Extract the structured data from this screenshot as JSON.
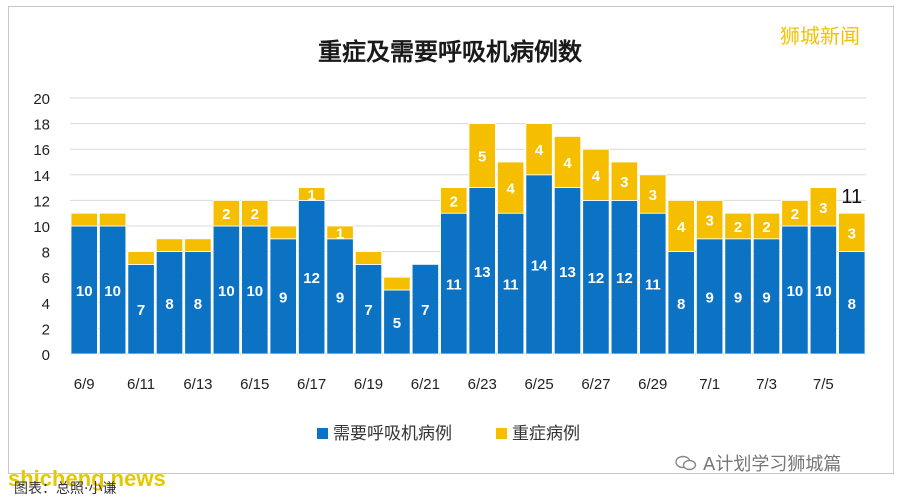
{
  "brand": "狮城新闻",
  "watermark": "shicheng.news",
  "wechat_account": "A计划学习狮城篇",
  "caption": "图表：总照·小谦",
  "colors": {
    "series1": "#0c72c4",
    "series2": "#f5bf00",
    "grid": "#d9d9d9",
    "text": "#222222"
  },
  "chart_data": {
    "type": "bar",
    "stacked": true,
    "title": "重症及需要呼吸机病例数",
    "categories": [
      "6/9",
      "6/10",
      "6/11",
      "6/12",
      "6/13",
      "6/14",
      "6/15",
      "6/16",
      "6/17",
      "6/18",
      "6/19",
      "6/20",
      "6/21",
      "6/22",
      "6/23",
      "6/24",
      "6/25",
      "6/26",
      "6/27",
      "6/28",
      "6/29",
      "6/30",
      "7/1",
      "7/2",
      "7/3",
      "7/4",
      "7/5",
      "7/6"
    ],
    "tick_labels": [
      "6/9",
      "",
      "6/11",
      "",
      "6/13",
      "",
      "6/15",
      "",
      "6/17",
      "",
      "6/19",
      "",
      "6/21",
      "",
      "6/23",
      "",
      "6/25",
      "",
      "6/27",
      "",
      "6/29",
      "",
      "7/1",
      "",
      "7/3",
      "",
      "7/5",
      ""
    ],
    "series": [
      {
        "name": "需要呼吸机病例",
        "values": [
          10,
          10,
          7,
          8,
          8,
          10,
          10,
          9,
          12,
          9,
          7,
          5,
          7,
          11,
          13,
          11,
          14,
          13,
          12,
          12,
          11,
          8,
          9,
          9,
          9,
          10,
          10,
          8
        ]
      },
      {
        "name": "重症病例",
        "values": [
          1,
          1,
          1,
          1,
          1,
          2,
          2,
          1,
          1,
          1,
          1,
          1,
          0,
          2,
          5,
          4,
          4,
          4,
          4,
          3,
          3,
          4,
          3,
          2,
          2,
          2,
          3,
          3
        ]
      }
    ],
    "series1_labels": [
      "10",
      "10",
      "7",
      "8",
      "8",
      "10",
      "10",
      "9",
      "12",
      "9",
      "7",
      "5",
      "7",
      "11",
      "13",
      "11",
      "14",
      "13",
      "12",
      "12",
      "11",
      "8",
      "9",
      "9",
      "9",
      "10",
      "10",
      "8"
    ],
    "series2_labels": [
      "",
      "",
      "",
      "",
      "",
      "2",
      "2",
      "",
      "1",
      "1",
      "",
      "",
      "",
      "2",
      "5",
      "4",
      "4",
      "4",
      "4",
      "3",
      "3",
      "4",
      "3",
      "2",
      "2",
      "2",
      "3",
      "3"
    ],
    "annotation": {
      "category": "7/6",
      "text": "11"
    },
    "ylim": [
      0,
      20
    ],
    "yticks": [
      "0",
      "2",
      "4",
      "6",
      "8",
      "10",
      "12",
      "14",
      "16",
      "18",
      "20"
    ],
    "grid": true,
    "legend_position": "bottom"
  }
}
